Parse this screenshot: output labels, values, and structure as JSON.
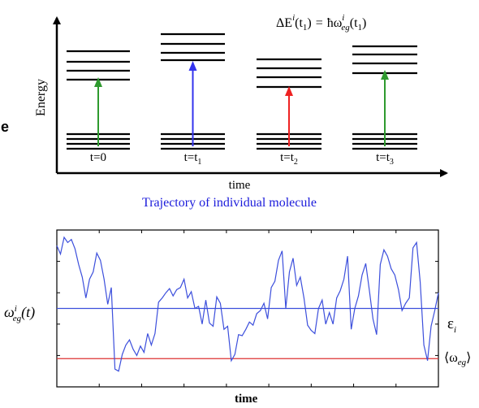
{
  "top_diagram": {
    "y_axis_label": "Energy",
    "x_axis_label": "time",
    "equation": {
      "lhs": "ΔE",
      "lhs_sup": "i",
      "lhs_arg": "(t",
      "lhs_arg_sub": "1",
      "lhs_arg_close": ")",
      "eq": "=",
      "rhs": "ħω",
      "rhs_sup": "i",
      "rhs_sub": "eg",
      "rhs_arg": "(t",
      "rhs_arg_sub": "1",
      "rhs_arg_close": ")"
    },
    "columns": [
      {
        "label": "t=0",
        "label_sub": "",
        "arrow_color": "#2e9a2e"
      },
      {
        "label": "t=t",
        "label_sub": "1",
        "arrow_color": "#3333ee"
      },
      {
        "label": "t=t",
        "label_sub": "2",
        "arrow_color": "#ee2222"
      },
      {
        "label": "t=t",
        "label_sub": "3",
        "arrow_color": "#2e9a2e"
      }
    ]
  },
  "left_fragment": "e",
  "bottom_chart": {
    "title": "Trajectory of individual molecule",
    "x_axis_label": "time",
    "y_label": {
      "base": "ω",
      "sup": "i",
      "sub": "eg",
      "arg": "(t)"
    },
    "epsilon_label": {
      "base": "ε",
      "sub": "i"
    },
    "average_label": {
      "open": "⟨",
      "base": "ω",
      "sub": "eg",
      "close": "⟩"
    },
    "colors": {
      "trace": "#3c4fdc",
      "epsilon_line": "#3c4fdc",
      "average_line": "#dd3030"
    }
  },
  "chart_data": {
    "type": "line",
    "title": "Trajectory of individual molecule",
    "xlabel": "time",
    "ylabel": "ω_eg^i(t)",
    "series": [
      {
        "name": "",
        "values": [
          0.9,
          0.82,
          0.98,
          0.93,
          0.96,
          0.87,
          0.72,
          0.6,
          0.4,
          0.58,
          0.65,
          0.83,
          0.76,
          0.58,
          0.34,
          0.5,
          -0.28,
          -0.3,
          -0.14,
          -0.05,
          0.0,
          -0.09,
          -0.15,
          -0.06,
          -0.12,
          0.06,
          -0.05,
          0.06,
          0.36,
          0.4,
          0.45,
          0.49,
          0.42,
          0.48,
          0.5,
          0.58,
          0.4,
          0.46,
          0.3,
          0.32,
          0.15,
          0.38,
          0.16,
          0.13,
          0.41,
          0.35,
          0.1,
          0.13,
          -0.2,
          -0.14,
          0.05,
          0.04,
          0.1,
          0.17,
          0.14,
          0.25,
          0.28,
          0.35,
          0.2,
          0.5,
          0.56,
          0.76,
          0.85,
          0.3,
          0.65,
          0.78,
          0.52,
          0.6,
          0.4,
          0.14,
          0.09,
          0.06,
          0.3,
          0.38,
          0.15,
          0.26,
          0.15,
          0.4,
          0.47,
          0.58,
          0.8,
          0.1,
          0.3,
          0.42,
          0.62,
          0.73,
          0.47,
          0.2,
          0.05,
          0.72,
          0.86,
          0.8,
          0.68,
          0.62,
          0.48,
          0.28,
          0.35,
          0.4,
          0.88,
          0.93,
          0.55,
          -0.05,
          -0.2,
          0.13,
          0.28,
          0.45
        ]
      }
    ],
    "reference_lines": [
      {
        "label": "ε_i",
        "y": 0.3
      },
      {
        "label": "⟨ω_eg⟩",
        "y": -0.18
      }
    ],
    "ylim": [
      -0.45,
      1.05
    ],
    "grid": false
  }
}
